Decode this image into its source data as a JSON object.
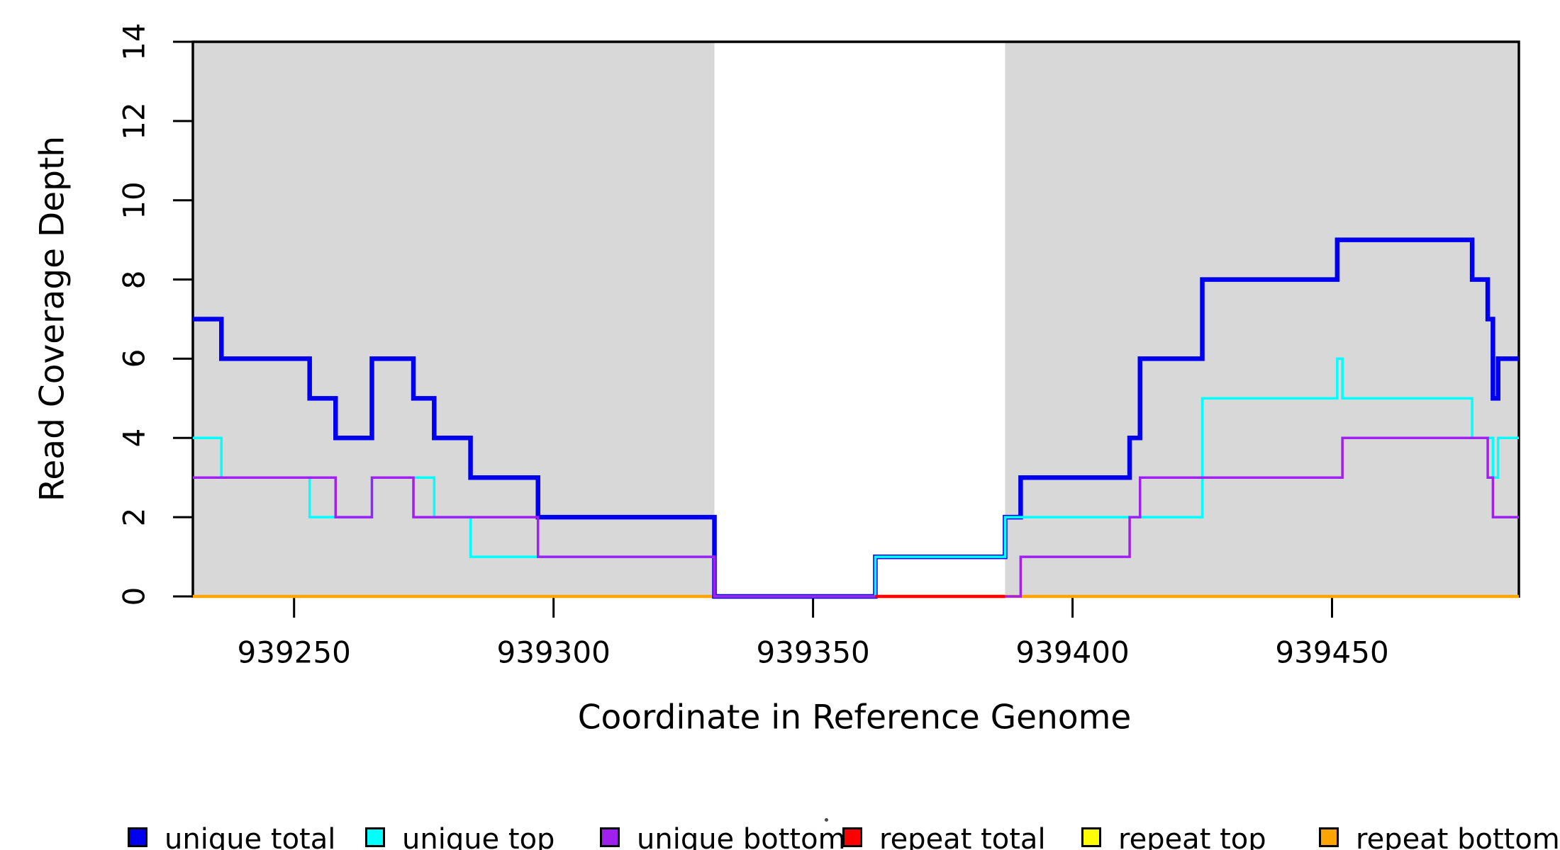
{
  "chart_data": {
    "type": "line",
    "subtype": "step",
    "title": "",
    "xlabel": "Coordinate in Reference Genome",
    "ylabel": "Read Coverage Depth",
    "xlim": [
      939230.5,
      939486
    ],
    "ylim": [
      0,
      14
    ],
    "xticks": [
      939250,
      939300,
      939350,
      939400,
      939450
    ],
    "yticks": [
      0,
      2,
      4,
      6,
      8,
      10,
      12,
      14
    ],
    "grid": false,
    "background": "#ffffff",
    "shaded_regions": [
      {
        "x0": 939230.5,
        "x1": 939331,
        "color": "#D8D8D8"
      },
      {
        "x0": 939387,
        "x1": 939486,
        "color": "#D8D8D8"
      }
    ],
    "series": [
      {
        "name": "repeat top",
        "color": "#FFFF00",
        "width": 3.5,
        "z": 1,
        "x_end": 939486,
        "steps": [
          [
            939230.5,
            0
          ]
        ]
      },
      {
        "name": "repeat bottom",
        "color": "#FFA500",
        "width": 4.5,
        "z": 2,
        "x_end": 939486,
        "steps": [
          [
            939230.5,
            0
          ]
        ]
      },
      {
        "name": "unique total",
        "color": "#0000EE",
        "width": 6.5,
        "z": 3,
        "x_end": 939486,
        "steps": [
          [
            939230.5,
            7
          ],
          [
            939236,
            6
          ],
          [
            939253,
            5
          ],
          [
            939258,
            4
          ],
          [
            939265,
            6
          ],
          [
            939273,
            5
          ],
          [
            939277,
            4
          ],
          [
            939284,
            3
          ],
          [
            939297,
            2
          ],
          [
            939331,
            0
          ],
          [
            939362,
            1
          ],
          [
            939387,
            2
          ],
          [
            939390,
            3
          ],
          [
            939411,
            4
          ],
          [
            939413,
            6
          ],
          [
            939425,
            8
          ],
          [
            939451,
            9
          ],
          [
            939477,
            8
          ],
          [
            939480,
            7
          ],
          [
            939481,
            5
          ],
          [
            939482,
            6
          ]
        ]
      },
      {
        "name": "unique top",
        "color": "#00FFFF",
        "width": 3.5,
        "z": 4,
        "x_end": 939486,
        "steps": [
          [
            939230.5,
            4
          ],
          [
            939236,
            3
          ],
          [
            939253,
            2
          ],
          [
            939265,
            3
          ],
          [
            939277,
            2
          ],
          [
            939284,
            1
          ],
          [
            939331,
            0
          ],
          [
            939362,
            1
          ],
          [
            939387,
            2
          ],
          [
            939425,
            5
          ],
          [
            939451,
            6
          ],
          [
            939452,
            5
          ],
          [
            939477,
            4
          ],
          [
            939481,
            3
          ],
          [
            939482,
            4
          ]
        ]
      },
      {
        "name": "unique bottom",
        "color": "#A020F0",
        "width": 3.5,
        "z": 5,
        "x_end": 939486,
        "steps": [
          [
            939230.5,
            3
          ],
          [
            939258,
            2
          ],
          [
            939265,
            3
          ],
          [
            939273,
            2
          ],
          [
            939297,
            1
          ],
          [
            939331,
            0
          ],
          [
            939390,
            1
          ],
          [
            939411,
            2
          ],
          [
            939413,
            3
          ],
          [
            939452,
            4
          ],
          [
            939480,
            3
          ],
          [
            939481,
            2
          ]
        ]
      },
      {
        "name": "repeat total",
        "color": "#FF0000",
        "width": 4.5,
        "z": 6,
        "x_end": 939387,
        "steps": [
          [
            939362,
            0
          ]
        ]
      }
    ],
    "legend": {
      "position": "bottom",
      "entries": [
        {
          "label": "unique total",
          "color": "#0000EE"
        },
        {
          "label": "unique top",
          "color": "#00FFFF"
        },
        {
          "label": "unique bottom",
          "color": "#A020F0"
        },
        {
          "label": "repeat total",
          "color": "#FF0000"
        },
        {
          "label": "repeat top",
          "color": "#FFFF00"
        },
        {
          "label": "repeat bottom",
          "color": "#FFA500"
        }
      ]
    },
    "axis_color": "#000000",
    "tick_label_values_x": [
      "939250",
      "939300",
      "939350",
      "939400",
      "939450"
    ],
    "tick_label_values_y": [
      "0",
      "2",
      "4",
      "6",
      "8",
      "10",
      "12",
      "14"
    ]
  }
}
